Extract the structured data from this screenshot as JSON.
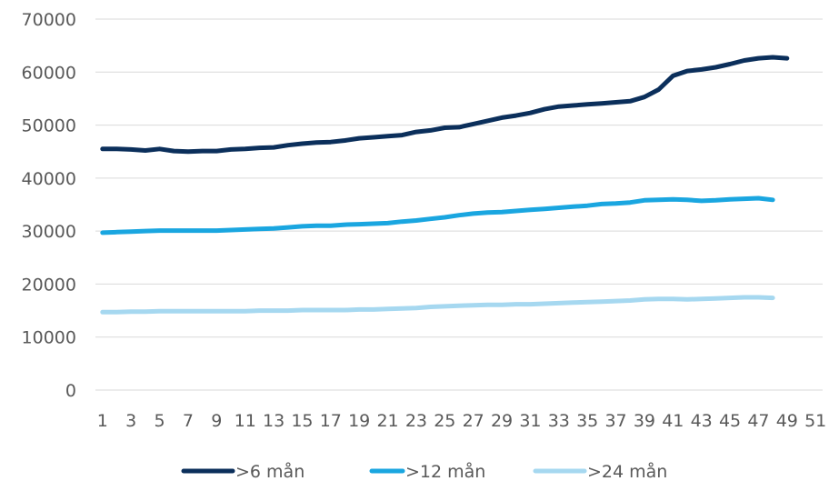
{
  "chart_data": {
    "type": "line",
    "x": [
      1,
      2,
      3,
      4,
      5,
      6,
      7,
      8,
      9,
      10,
      11,
      12,
      13,
      14,
      15,
      16,
      17,
      18,
      19,
      20,
      21,
      22,
      23,
      24,
      25,
      26,
      27,
      28,
      29,
      30,
      31,
      32,
      33,
      34,
      35,
      36,
      37,
      38,
      39,
      40,
      41,
      42,
      43,
      44,
      45,
      46,
      47,
      48,
      49,
      50,
      51
    ],
    "x_tick_labels": [
      "1",
      "3",
      "5",
      "7",
      "9",
      "11",
      "13",
      "15",
      "17",
      "19",
      "21",
      "23",
      "25",
      "27",
      "29",
      "31",
      "33",
      "35",
      "37",
      "39",
      "41",
      "43",
      "45",
      "47",
      "49",
      "51"
    ],
    "ylim": [
      0,
      70000
    ],
    "y_ticks": [
      0,
      10000,
      20000,
      30000,
      40000,
      50000,
      60000,
      70000
    ],
    "grid": true,
    "legend_position": "bottom",
    "series": [
      {
        "name": ">6 mån",
        "color": "#0b2f5b",
        "values": [
          45500,
          45500,
          45400,
          45200,
          45500,
          45100,
          45000,
          45100,
          45100,
          45400,
          45500,
          45700,
          45800,
          46200,
          46500,
          46700,
          46800,
          47100,
          47500,
          47700,
          47900,
          48100,
          48700,
          49000,
          49500,
          49600,
          50200,
          50800,
          51400,
          51800,
          52300,
          53000,
          53500,
          53700,
          53900,
          54100,
          54300,
          54500,
          55300,
          56700,
          59300,
          60200,
          60500,
          60900,
          61500,
          62200,
          62600,
          62800,
          62600,
          null,
          null
        ]
      },
      {
        "name": ">12 mån",
        "color": "#1aa6e0",
        "values": [
          29700,
          29800,
          29900,
          30000,
          30100,
          30100,
          30100,
          30100,
          30100,
          30200,
          30300,
          30400,
          30500,
          30700,
          30900,
          31000,
          31000,
          31200,
          31300,
          31400,
          31500,
          31800,
          32000,
          32300,
          32600,
          33000,
          33300,
          33500,
          33600,
          33800,
          34000,
          34200,
          34400,
          34600,
          34800,
          35100,
          35200,
          35400,
          35800,
          35900,
          36000,
          35900,
          35700,
          35800,
          36000,
          36100,
          36200,
          35900,
          null,
          null,
          null
        ]
      },
      {
        "name": ">24 mån",
        "color": "#a6d8f0",
        "values": [
          14700,
          14700,
          14800,
          14800,
          14900,
          14900,
          14900,
          14900,
          14900,
          14900,
          14900,
          15000,
          15000,
          15000,
          15100,
          15100,
          15100,
          15100,
          15200,
          15200,
          15300,
          15400,
          15500,
          15700,
          15800,
          15900,
          16000,
          16100,
          16100,
          16200,
          16200,
          16300,
          16400,
          16500,
          16600,
          16700,
          16800,
          16900,
          17100,
          17200,
          17200,
          17100,
          17200,
          17300,
          17400,
          17500,
          17500,
          17400,
          null,
          null,
          null
        ]
      }
    ]
  }
}
